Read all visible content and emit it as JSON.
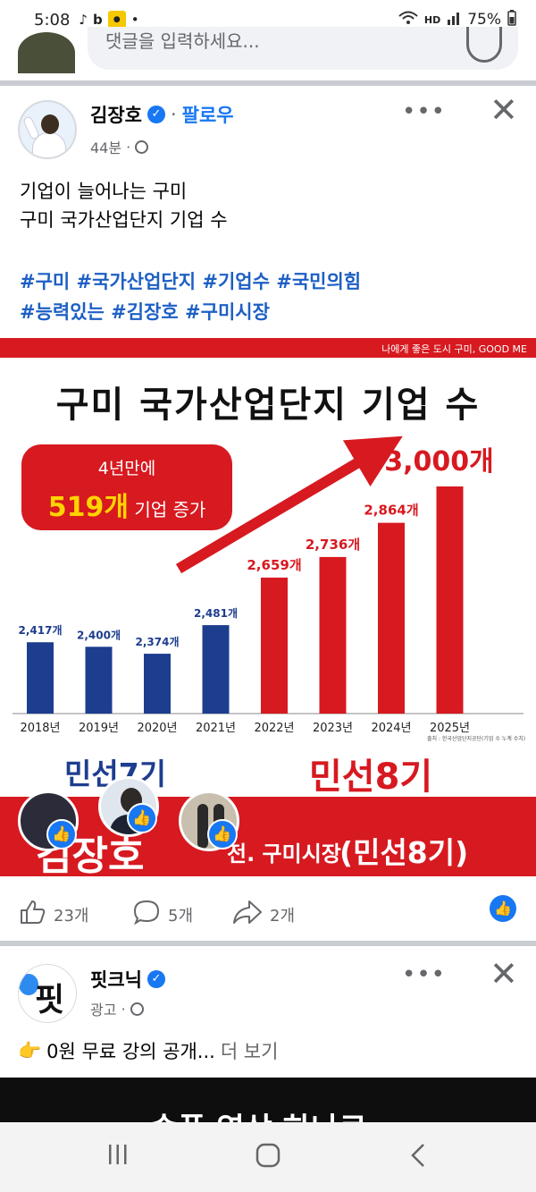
{
  "status_bar": {
    "time": "5:08",
    "network": "HD",
    "battery": "75%"
  },
  "comment_bar": {
    "placeholder": "댓글을 입력하세요..."
  },
  "post": {
    "author": "김장호",
    "follow_label": "팔로우",
    "time": "44분",
    "text_lines": [
      "기업이 늘어나는 구미",
      "구미 국가산업단지 기업 수"
    ],
    "hashtag_lines": [
      "#구미 #국가산업단지 #기업수 #국민의힘",
      "#능력있는 #김장호 #구미시장"
    ],
    "more_label": "•••",
    "close_label": "✕"
  },
  "infographic": {
    "tagline": "나에게 좋은 도시 구미, GOOD ME",
    "title": "구미 국가산업단지 기업 수",
    "badge_line1": "4년만에",
    "badge_highlight": "519개",
    "badge_rest": "기업 증가",
    "final_label": "3,000개",
    "source": "출처 : 한국산업단지공단(기업 수 누계 수치)",
    "term7": "민선7기",
    "term8": "민선8기",
    "banner_name": "김장호",
    "banner_role": "전. 구미시장",
    "banner_term": "(민선8기)"
  },
  "chart_data": {
    "type": "bar",
    "title": "구미 국가산업단지 기업 수",
    "categories": [
      "2018년",
      "2019년",
      "2020년",
      "2021년",
      "2022년",
      "2023년",
      "2024년",
      "2025년"
    ],
    "values": [
      2417,
      2400,
      2374,
      2481,
      2659,
      2736,
      2864,
      3000
    ],
    "value_labels": [
      "2,417개",
      "2,400개",
      "2,374개",
      "2,481개",
      "2,659개",
      "2,736개",
      "2,864개",
      "3,000개"
    ],
    "colors": [
      "#1d3d8f",
      "#1d3d8f",
      "#1d3d8f",
      "#1d3d8f",
      "#d71920",
      "#d71920",
      "#d71920",
      "#d71920"
    ],
    "xlabel": "",
    "ylabel": ""
  },
  "actions": {
    "likes": "23개",
    "comments": "5개",
    "shares": "2개"
  },
  "ad": {
    "name": "핏크닉",
    "meta": "광고",
    "text": "0원 무료 강의 공개...",
    "see_more": "더 보기",
    "image_text": "숏폼 영상 하나로"
  },
  "colors": {
    "accent": "#1877f2",
    "brand_red": "#d71920",
    "brand_blue": "#1d3d8f"
  }
}
